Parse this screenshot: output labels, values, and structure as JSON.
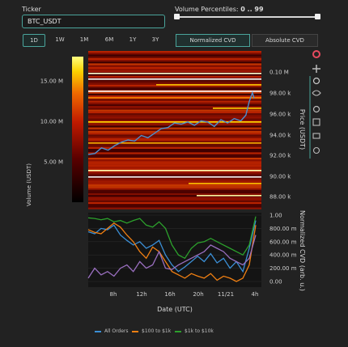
{
  "ticker": {
    "label": "Ticker",
    "value": "BTC_USDT"
  },
  "volume_percentiles": {
    "label": "Volume Percentiles:",
    "range_text": "0 .. 99",
    "min": 0,
    "max": 99
  },
  "ranges": [
    "1D",
    "1W",
    "1M",
    "6M",
    "1Y",
    "3Y"
  ],
  "active_range": "1D",
  "cvd_modes": [
    "Normalized CVD",
    "Absolute CVD"
  ],
  "active_cvd_mode": "Normalized CVD",
  "toolbar_icons": [
    "plotly-logo-icon",
    "pan-icon",
    "zoom-icon",
    "lasso-icon",
    "reset-icon",
    "download-icon",
    "camera-icon",
    "autoscale-icon"
  ],
  "colorbar": {
    "title": "Volume (USDT)",
    "ticks": [
      "15.00 M",
      "10.00 M",
      "5.00 M"
    ],
    "values": [
      15000000,
      10000000,
      5000000
    ],
    "max": 18000000
  },
  "price_axis": {
    "title": "Price (USDT)",
    "ticks": [
      "0.10 M",
      "98.00 k",
      "96.00 k",
      "94.00 k",
      "92.00 k",
      "90.00 k",
      "88.00 k"
    ]
  },
  "cvd_axis": {
    "title": "Normalized CVD (arb. u.)",
    "ticks": [
      "1.00",
      "800.00 m",
      "600.00 m",
      "400.00 m",
      "200.00 m",
      "0.00"
    ]
  },
  "x_axis": {
    "title": "Date (UTC)",
    "ticks": [
      "8h",
      "12h",
      "16h",
      "20h",
      "11/21",
      "4h"
    ]
  },
  "legend": [
    {
      "name": "All Orders",
      "color": "#3b8fd6"
    },
    {
      "name": "$100 to $1k",
      "color": "#f07f12"
    },
    {
      "name": "$1k to $10k",
      "color": "#2ca02c"
    }
  ],
  "chart_data": [
    {
      "type": "heatmap",
      "xlabel": "Date (UTC)",
      "ylabel": "Price (USDT)",
      "x_ticks": [
        "8h",
        "12h",
        "16h",
        "20h",
        "11/21",
        "4h"
      ],
      "y_range": [
        87000,
        101000
      ],
      "colorbar_title": "Volume (USDT)",
      "price_line": [
        [
          0,
          91800
        ],
        [
          0.04,
          91900
        ],
        [
          0.08,
          92400
        ],
        [
          0.12,
          92200
        ],
        [
          0.16,
          92600
        ],
        [
          0.2,
          92900
        ],
        [
          0.24,
          93100
        ],
        [
          0.28,
          93000
        ],
        [
          0.32,
          93500
        ],
        [
          0.36,
          93300
        ],
        [
          0.4,
          93700
        ],
        [
          0.44,
          94100
        ],
        [
          0.48,
          94200
        ],
        [
          0.52,
          94600
        ],
        [
          0.56,
          94500
        ],
        [
          0.6,
          94700
        ],
        [
          0.64,
          94400
        ],
        [
          0.68,
          94800
        ],
        [
          0.72,
          94700
        ],
        [
          0.76,
          94300
        ],
        [
          0.8,
          94900
        ],
        [
          0.84,
          94600
        ],
        [
          0.88,
          95000
        ],
        [
          0.92,
          94800
        ],
        [
          0.95,
          95300
        ],
        [
          0.97,
          96500
        ],
        [
          0.99,
          97300
        ],
        [
          1.0,
          96800
        ]
      ]
    },
    {
      "type": "line",
      "xlabel": "Date (UTC)",
      "ylabel": "Normalized CVD (arb. u.)",
      "ylim": [
        0,
        1
      ],
      "series": [
        {
          "name": "All Orders",
          "values": [
            0.75,
            0.72,
            0.8,
            0.78,
            0.85,
            0.7,
            0.62,
            0.55,
            0.6,
            0.5,
            0.55,
            0.62,
            0.4,
            0.25,
            0.15,
            0.22,
            0.3,
            0.38,
            0.3,
            0.42,
            0.28,
            0.35,
            0.2,
            0.3,
            0.15,
            0.5,
            0.92
          ]
        },
        {
          "name": "$100 to $1k",
          "values": [
            0.78,
            0.74,
            0.72,
            0.8,
            0.88,
            0.82,
            0.7,
            0.6,
            0.45,
            0.35,
            0.52,
            0.45,
            0.3,
            0.15,
            0.1,
            0.05,
            0.12,
            0.08,
            0.05,
            0.12,
            0.02,
            0.08,
            0.05,
            0.0,
            0.05,
            0.25,
            0.85
          ]
        },
        {
          "name": "$1k to $10k",
          "values": [
            0.96,
            0.95,
            0.93,
            0.95,
            0.9,
            0.92,
            0.88,
            0.92,
            0.95,
            0.85,
            0.82,
            0.9,
            0.8,
            0.55,
            0.4,
            0.35,
            0.5,
            0.58,
            0.6,
            0.65,
            0.6,
            0.55,
            0.5,
            0.45,
            0.4,
            0.55,
            0.98
          ]
        },
        {
          "name": "",
          "values": [
            0.05,
            0.2,
            0.1,
            0.15,
            0.08,
            0.2,
            0.25,
            0.15,
            0.3,
            0.2,
            0.25,
            0.45,
            0.2,
            0.18,
            0.25,
            0.3,
            0.35,
            0.4,
            0.45,
            0.55,
            0.5,
            0.45,
            0.35,
            0.3,
            0.25,
            0.35,
            0.7
          ]
        }
      ]
    }
  ]
}
